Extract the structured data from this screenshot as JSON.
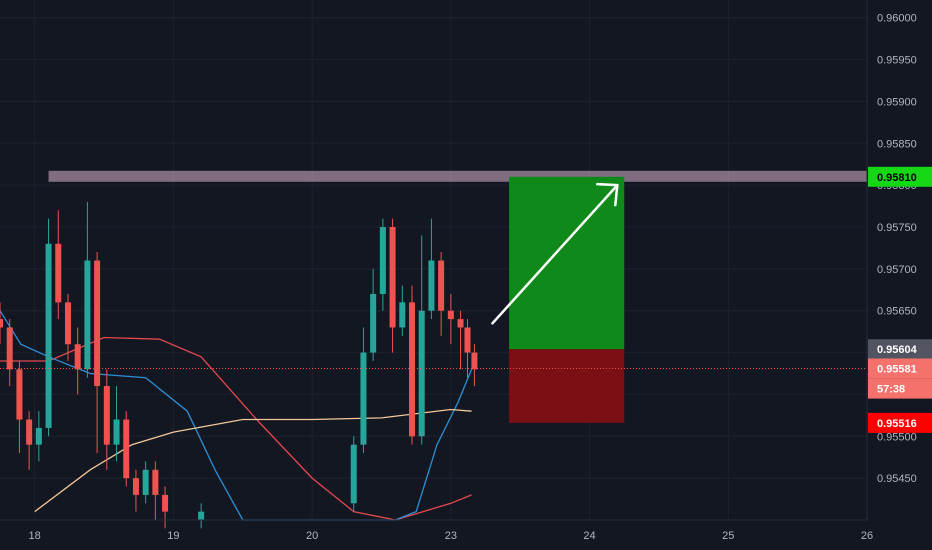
{
  "chart_data": {
    "type": "candlestick",
    "colors": {
      "background": "#131722",
      "grid": "#1e222d",
      "up": "#26a69a",
      "down": "#ef5350",
      "ma_red": "#e5484d",
      "ma_blue": "#2d8fd5",
      "ma_orange": "#f3c79a",
      "resistance": "#c9a8bf",
      "target_zone": "#0f8a1a",
      "stop_zone": "#7a0f14",
      "tag_green": "#16d716",
      "tag_grey": "#525561",
      "tag_salmon": "#f5716c",
      "tag_red": "#ff0000",
      "arrow": "#ffffff"
    },
    "x_axis": {
      "ticks": [
        {
          "label": "18",
          "x": 18
        },
        {
          "label": "19",
          "x": 19
        },
        {
          "label": "20",
          "x": 20
        },
        {
          "label": "23",
          "x": 21
        },
        {
          "label": "24",
          "x": 22
        },
        {
          "label": "25",
          "x": 23
        },
        {
          "label": "26",
          "x": 24
        }
      ]
    },
    "y_axis": {
      "range": [
        0.954,
        0.9602
      ],
      "ticks": [
        "0.96000",
        "0.95950",
        "0.95900",
        "0.95850",
        "0.95800",
        "0.95750",
        "0.95700",
        "0.95650",
        "0.95600",
        "0.95550",
        "0.95500",
        "0.95450"
      ]
    },
    "price_tags": [
      {
        "label": "0.95810",
        "value": 0.9581,
        "style": "green"
      },
      {
        "label": "0.95604",
        "value": 0.95604,
        "style": "grey"
      },
      {
        "label": "0.95581",
        "value": 0.95581,
        "style": "salmon"
      },
      {
        "label": "57:38",
        "value": 0.95557,
        "style": "salmon"
      },
      {
        "label": "0.95516",
        "value": 0.95516,
        "style": "red"
      }
    ],
    "resistance": {
      "price": 0.9581,
      "x_start": 18.1,
      "x_end": 24.0
    },
    "position": {
      "x_start": 21.42,
      "x_end": 22.25,
      "entry": 0.95604,
      "target": 0.9581,
      "stop": 0.95516
    },
    "arrow": {
      "from": [
        21.3,
        0.95635
      ],
      "to": [
        22.2,
        0.958
      ]
    },
    "last_price": 0.95581,
    "candles": [
      [
        17.75,
        0.9564,
        0.9563,
        0.9566,
        0.9561
      ],
      [
        17.82,
        0.9563,
        0.9558,
        0.9564,
        0.9556
      ],
      [
        17.89,
        0.9558,
        0.9552,
        0.9559,
        0.9548
      ],
      [
        17.96,
        0.9552,
        0.9549,
        0.9553,
        0.9546
      ],
      [
        18.03,
        0.9549,
        0.9551,
        0.9553,
        0.9547
      ],
      [
        18.1,
        0.9551,
        0.9573,
        0.9576,
        0.955
      ],
      [
        18.17,
        0.9573,
        0.9566,
        0.9577,
        0.9564
      ],
      [
        18.24,
        0.9566,
        0.9561,
        0.9567,
        0.9559
      ],
      [
        18.31,
        0.9561,
        0.9558,
        0.9563,
        0.9555
      ],
      [
        18.38,
        0.9558,
        0.9571,
        0.9578,
        0.9557
      ],
      [
        18.45,
        0.9571,
        0.9556,
        0.9572,
        0.9548
      ],
      [
        18.52,
        0.9556,
        0.9549,
        0.9558,
        0.9546
      ],
      [
        18.59,
        0.9549,
        0.9552,
        0.9556,
        0.9547
      ],
      [
        18.66,
        0.9552,
        0.9545,
        0.9553,
        0.9544
      ],
      [
        18.73,
        0.9545,
        0.9543,
        0.9546,
        0.9541
      ],
      [
        18.8,
        0.9543,
        0.9546,
        0.9547,
        0.9542
      ],
      [
        18.87,
        0.9546,
        0.9543,
        0.9547,
        0.954
      ],
      [
        18.94,
        0.9543,
        0.9541,
        0.9544,
        0.9539
      ],
      [
        19.2,
        0.954,
        0.9541,
        0.9542,
        0.9539
      ],
      [
        20.3,
        0.9542,
        0.9549,
        0.955,
        0.9541
      ],
      [
        20.37,
        0.9549,
        0.956,
        0.9563,
        0.9548
      ],
      [
        20.44,
        0.956,
        0.9567,
        0.957,
        0.9559
      ],
      [
        20.51,
        0.9567,
        0.9575,
        0.9576,
        0.9565
      ],
      [
        20.58,
        0.9575,
        0.9563,
        0.9576,
        0.956
      ],
      [
        20.65,
        0.9563,
        0.9566,
        0.9568,
        0.9562
      ],
      [
        20.72,
        0.9566,
        0.955,
        0.9568,
        0.9549
      ],
      [
        20.79,
        0.955,
        0.9565,
        0.9574,
        0.9549
      ],
      [
        20.86,
        0.9565,
        0.9571,
        0.9576,
        0.9564
      ],
      [
        20.93,
        0.9571,
        0.9565,
        0.9572,
        0.9562
      ],
      [
        21.0,
        0.9565,
        0.9564,
        0.9567,
        0.9561
      ],
      [
        21.07,
        0.9564,
        0.9563,
        0.9565,
        0.9558
      ],
      [
        21.12,
        0.9563,
        0.956,
        0.9564,
        0.9557
      ],
      [
        21.17,
        0.956,
        0.9558,
        0.9561,
        0.9556
      ]
    ],
    "ma_series": [
      {
        "key": "red",
        "points": [
          [
            17.75,
            0.9559
          ],
          [
            18.1,
            0.9559
          ],
          [
            18.5,
            0.95618
          ],
          [
            18.9,
            0.95616
          ],
          [
            19.2,
            0.95595
          ],
          [
            19.6,
            0.9552
          ],
          [
            20.0,
            0.9545
          ],
          [
            20.3,
            0.9541
          ],
          [
            20.6,
            0.954
          ],
          [
            21.0,
            0.9542
          ],
          [
            21.15,
            0.9543
          ]
        ]
      },
      {
        "key": "blue",
        "points": [
          [
            17.75,
            0.9565
          ],
          [
            17.9,
            0.9561
          ],
          [
            18.1,
            0.95595
          ],
          [
            18.4,
            0.95575
          ],
          [
            18.8,
            0.9557
          ],
          [
            19.1,
            0.9553
          ],
          [
            19.3,
            0.9546
          ],
          [
            19.5,
            0.954
          ],
          [
            20.3,
            0.954
          ],
          [
            20.6,
            0.954
          ],
          [
            20.75,
            0.9541
          ],
          [
            20.9,
            0.9549
          ],
          [
            21.05,
            0.9554
          ],
          [
            21.15,
            0.9558
          ]
        ]
      },
      {
        "key": "orange",
        "points": [
          [
            18.0,
            0.9541
          ],
          [
            18.4,
            0.9546
          ],
          [
            18.7,
            0.9549
          ],
          [
            19.0,
            0.95505
          ],
          [
            19.5,
            0.9552
          ],
          [
            20.0,
            0.9552
          ],
          [
            20.5,
            0.95522
          ],
          [
            21.0,
            0.95532
          ],
          [
            21.15,
            0.9553
          ]
        ]
      }
    ]
  }
}
